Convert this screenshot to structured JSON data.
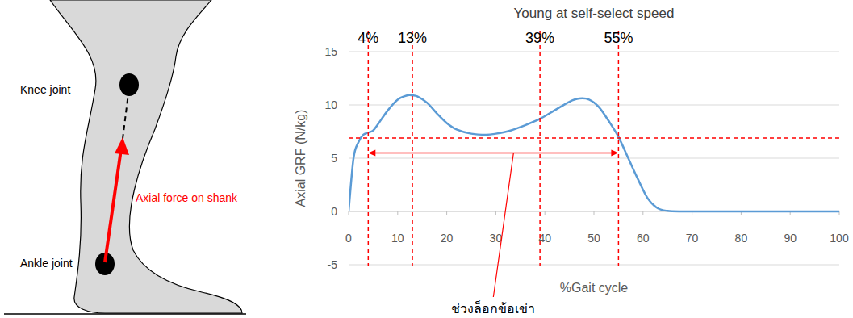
{
  "diagram": {
    "knee_label": "Knee joint",
    "ankle_label": "Ankle joint",
    "force_label": "Axial force on shank"
  },
  "chart_data": {
    "type": "line",
    "title": "Young at self-select speed",
    "x_label": "%Gait cycle",
    "y_label": "Axial GRF (N/kg)",
    "x": [
      0,
      1,
      2,
      3,
      4,
      5,
      6,
      8,
      10,
      12,
      13,
      14,
      16,
      18,
      20,
      22,
      25,
      28,
      30,
      33,
      36,
      39,
      42,
      45,
      47,
      49,
      51,
      53,
      55,
      57,
      59,
      61,
      63,
      65,
      68,
      70,
      80,
      90,
      100
    ],
    "series": [
      {
        "name": "Young at self-select speed",
        "color": "#5b9bd5",
        "line_style": "solid",
        "values": [
          0,
          5.0,
          6.5,
          7.2,
          7.4,
          7.6,
          8.2,
          9.5,
          10.5,
          10.9,
          10.9,
          10.8,
          10.2,
          9.2,
          8.3,
          7.7,
          7.3,
          7.2,
          7.3,
          7.6,
          8.1,
          8.7,
          9.5,
          10.3,
          10.6,
          10.5,
          9.8,
          8.5,
          7.0,
          5.0,
          3.0,
          1.2,
          0.3,
          0.05,
          0,
          0,
          0,
          0,
          0
        ]
      }
    ],
    "xlim": [
      0,
      100
    ],
    "xticks": [
      0,
      10,
      20,
      30,
      40,
      50,
      60,
      70,
      80,
      90,
      100
    ],
    "ylim": [
      -5,
      15
    ],
    "yticks": [
      -5,
      0,
      5,
      10,
      15
    ],
    "grid": true,
    "annotations": {
      "vlines": [
        {
          "value": 4,
          "label": "4%"
        },
        {
          "value": 13,
          "label": "13%"
        },
        {
          "value": 39,
          "label": "39%"
        },
        {
          "value": 55,
          "label": "55%"
        }
      ],
      "hline": 6.9,
      "range": {
        "x": [
          4,
          55
        ],
        "y": 5.5,
        "label": "ช่วงล็อกข้อเข่า"
      },
      "color": "#ff0000"
    }
  }
}
